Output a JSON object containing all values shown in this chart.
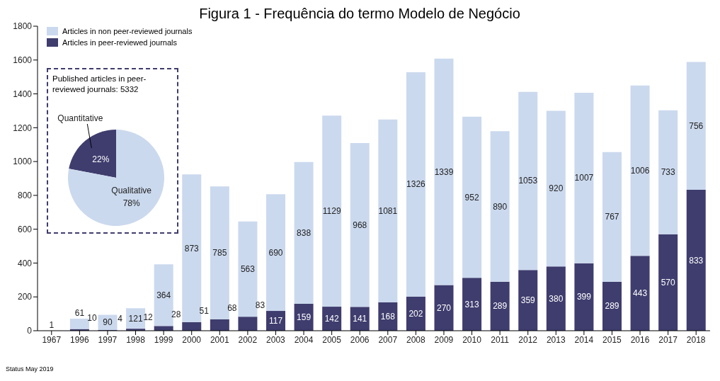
{
  "chart_data": [
    {
      "type": "bar",
      "title": "Figura 1 - Frequência do termo Modelo de Negócio",
      "stacked": true,
      "categories": [
        "1967",
        "1996",
        "1997",
        "1998",
        "1999",
        "2000",
        "2001",
        "2002",
        "2003",
        "2004",
        "2005",
        "2006",
        "2007",
        "2008",
        "2009",
        "2010",
        "2011",
        "2012",
        "2013",
        "2014",
        "2015",
        "2016",
        "2017",
        "2018"
      ],
      "series": [
        {
          "name": "Articles in peer-reviewed journals",
          "color": "#3f3d6e",
          "values": [
            null,
            10,
            4,
            12,
            28,
            51,
            68,
            83,
            117,
            159,
            142,
            141,
            168,
            202,
            270,
            313,
            289,
            359,
            380,
            399,
            289,
            443,
            570,
            833
          ]
        },
        {
          "name": "Articles in non peer-reviewed journals",
          "color": "#cbd9ee",
          "values": [
            1,
            61,
            90,
            121,
            364,
            873,
            785,
            563,
            690,
            838,
            1129,
            968,
            1081,
            1326,
            1339,
            952,
            890,
            1053,
            920,
            1007,
            767,
            1006,
            733,
            756
          ]
        }
      ],
      "ylim": [
        0,
        1800
      ],
      "yticks": [
        0,
        200,
        400,
        600,
        800,
        1000,
        1200,
        1400,
        1600,
        1800
      ],
      "legend": "top left",
      "data_labels": true,
      "annotations": [
        "Status May 2019"
      ]
    },
    {
      "type": "pie",
      "title": "Published articles in peer-reviewed journals: 5332",
      "categories": [
        "Quantitative",
        "Qualitative"
      ],
      "values": [
        22,
        78
      ],
      "colors": [
        "#3f3d6e",
        "#cbd9ee"
      ],
      "value_labels": [
        "22%",
        "78%"
      ]
    }
  ]
}
